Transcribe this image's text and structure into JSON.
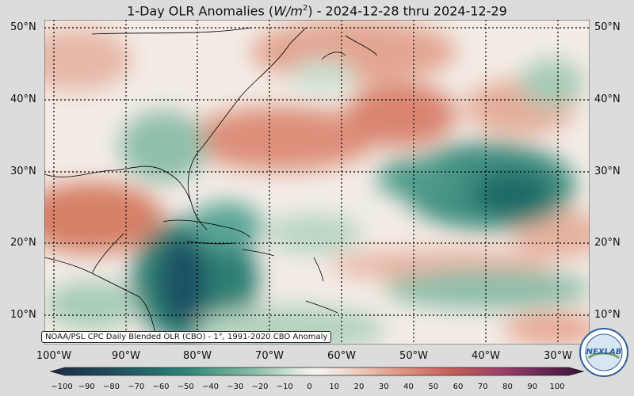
{
  "title": {
    "prefix": "1-Day OLR Anomalies (",
    "unit_base": "W/m",
    "unit_exp": "2",
    "suffix": ") - 2024-12-28 thru 2024-12-29"
  },
  "lat_labels": [
    "50°N",
    "40°N",
    "30°N",
    "20°N",
    "10°N"
  ],
  "lon_labels": [
    "100°W",
    "90°W",
    "80°W",
    "70°W",
    "60°W",
    "50°W",
    "40°W",
    "30°W"
  ],
  "credit": "NOAA/PSL CPC Daily Blended OLR (CBO) - 1°, 1991-2020 CBO Anomaly",
  "colorbar": {
    "ticks": [
      "−100",
      "−90",
      "−80",
      "−70",
      "−60",
      "−50",
      "−40",
      "−30",
      "−20",
      "−10",
      "0",
      "10",
      "20",
      "30",
      "40",
      "50",
      "60",
      "70",
      "80",
      "90",
      "100"
    ],
    "negative_color": "#1e3a5f",
    "mid_color": "#f7f4f1",
    "positive_color": "#3b0f3a"
  },
  "logo": {
    "text": "NEXLAB"
  },
  "colors": {
    "negative": "#2e8a7a",
    "positive": "#cf6f5c",
    "neutral": "#f6efe9"
  }
}
